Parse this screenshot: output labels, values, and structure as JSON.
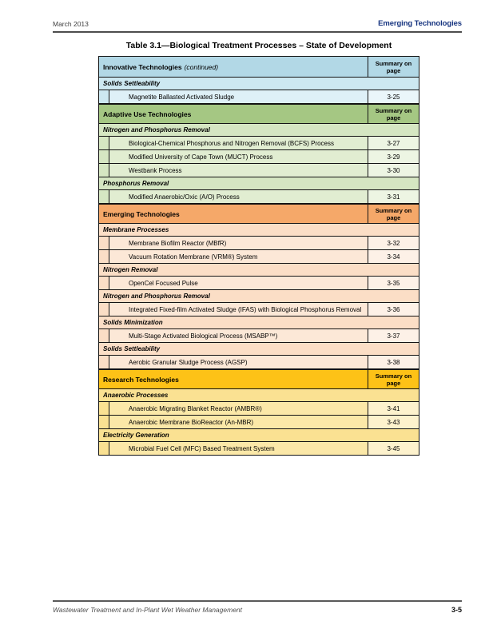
{
  "page_header": {
    "date": "March 2013",
    "section": "Emerging Technologies"
  },
  "title": "Table 3.1—Biological Treatment Processes – State of Development",
  "table": {
    "page_col_header": "Summary on page",
    "sections": [
      {
        "label": "Innovative Technologies",
        "label_suffix": "(continued)",
        "colors": {
          "header": "#b2d8e6",
          "sub": "#cde8f1",
          "row": "#def0f7",
          "page": "#eaf6fa"
        },
        "groups": [
          {
            "heading": "Solids Settleability",
            "rows": [
              {
                "name": "Magnetite Ballasted Activated Sludge",
                "page": "3-25"
              }
            ]
          }
        ]
      },
      {
        "label": "Adaptive Use Technologies",
        "label_suffix": "",
        "colors": {
          "header": "#a5c783",
          "sub": "#d5e6c2",
          "row": "#e1edd1",
          "page": "#edf5e3"
        },
        "groups": [
          {
            "heading": "Nitrogen and Phosphorus Removal",
            "rows": [
              {
                "name": "Biological-Chemical Phosphorus and Nitrogen Removal (BCFS) Process",
                "page": "3-27"
              },
              {
                "name": "Modified University of Cape Town (MUCT) Process",
                "page": "3-29"
              },
              {
                "name": "Westbank Process",
                "page": "3-30"
              }
            ]
          },
          {
            "heading": "Phosphorus Removal",
            "rows": [
              {
                "name": "Modified Anaerobic/Oxic (A/O) Process",
                "page": "3-31"
              }
            ]
          }
        ]
      },
      {
        "label": "Emerging Technologies",
        "label_suffix": "",
        "colors": {
          "header": "#f5a869",
          "sub": "#fbdec6",
          "row": "#fce8d7",
          "page": "#fdf1e7"
        },
        "groups": [
          {
            "heading": "Membrane Processes",
            "rows": [
              {
                "name": "Membrane Biofilm Reactor (MBfR)",
                "page": "3-32"
              },
              {
                "name": "Vacuum Rotation Membrane (VRM®) System",
                "page": "3-34"
              }
            ]
          },
          {
            "heading": "Nitrogen Removal",
            "rows": [
              {
                "name": "OpenCel Focused Pulse",
                "page": "3-35"
              }
            ]
          },
          {
            "heading": "Nitrogen and Phosphorus Removal",
            "rows": [
              {
                "name": "Integrated Fixed-film Activated Sludge (IFAS) with Biological Phosphorus Removal",
                "page": "3-36"
              }
            ]
          },
          {
            "heading": "Solids Minimization",
            "rows": [
              {
                "name": "Multi-Stage Activated Biological Process (MSABP™)",
                "page": "3-37"
              }
            ]
          },
          {
            "heading": "Solids Settleability",
            "rows": [
              {
                "name": "Aerobic Granular Sludge Process (AGSP)",
                "page": "3-38"
              }
            ]
          }
        ]
      },
      {
        "label": "Research Technologies",
        "label_suffix": "",
        "colors": {
          "header": "#fdc217",
          "sub": "#fae192",
          "row": "#fbe8a8",
          "page": "#fdf2cd"
        },
        "groups": [
          {
            "heading": "Anaerobic Processes",
            "rows": [
              {
                "name": "Anaerobic Migrating Blanket Reactor (AMBR®)",
                "page": "3-41"
              },
              {
                "name": "Anaerobic Membrane BioReactor (An-MBR)",
                "page": "3-43"
              }
            ]
          },
          {
            "heading": "Electricity Generation",
            "rows": [
              {
                "name": "Microbial Fuel Cell (MFC) Based Treatment System",
                "page": "3-45"
              }
            ]
          }
        ]
      }
    ]
  },
  "page_footer": {
    "left": "Wastewater Treatment and In-Plant Wet Weather Management",
    "right": "3-5"
  }
}
